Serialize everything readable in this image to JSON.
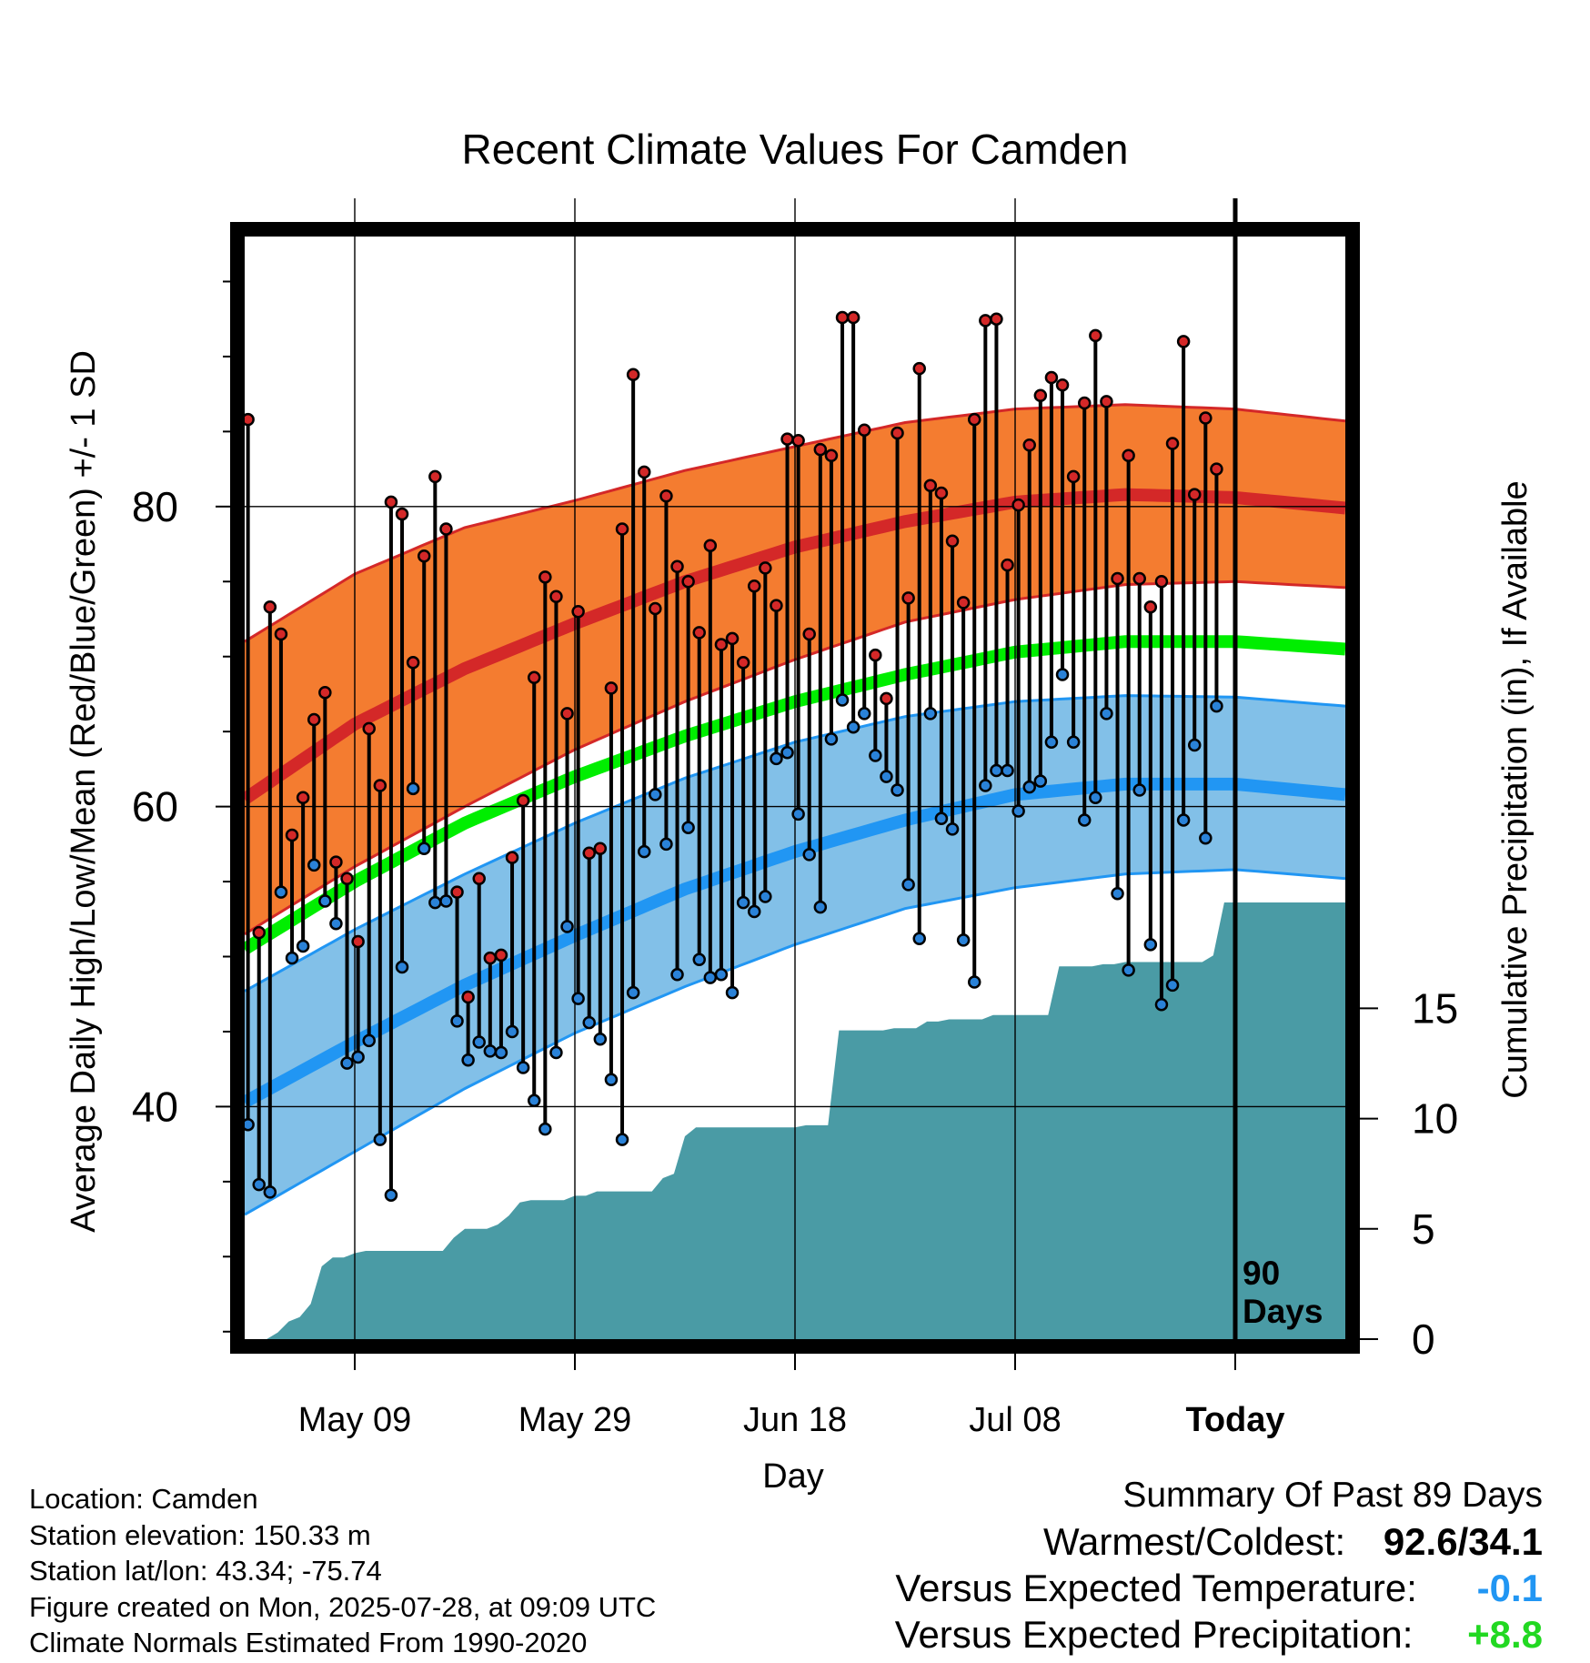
{
  "chart_data": {
    "type": "line",
    "title": "Recent Climate Values For Camden",
    "xlabel": "Day",
    "ylabel_left": "Average Daily High/Low/Mean (Red/Blue/Green) +/- 1 SD",
    "ylabel_right": "Cumulative Precipitation (in), If Available",
    "x_tick_labels": [
      "May 09",
      "May 29",
      "Jun 18",
      "Jul 08",
      "Today"
    ],
    "x_tick_days": [
      10,
      30,
      50,
      70,
      90
    ],
    "xlim_days": [
      0,
      100
    ],
    "left_yticks": [
      40,
      60,
      80
    ],
    "left_ylim": [
      24.5,
      98
    ],
    "right_yticks": [
      0,
      5,
      10,
      15
    ],
    "right_ylim": [
      0,
      50
    ],
    "today_marker_label": "90 Days",
    "grid": true,
    "colors": {
      "high_band": "#f47c30",
      "high_mean": "#d42828",
      "low_band": "#82c0e8",
      "low_mean": "#2196f3",
      "mean_line": "#00ee00",
      "precip": "#4a9ba5",
      "high_marker": "#d42828",
      "low_marker": "#2a82d8"
    },
    "normals": {
      "days": [
        0,
        10,
        20,
        30,
        40,
        50,
        60,
        70,
        80,
        90,
        100
      ],
      "high_mean": [
        60.5,
        65.5,
        69.2,
        72.2,
        75.0,
        77.3,
        79.0,
        80.3,
        80.8,
        80.6,
        79.9
      ],
      "high_upper": [
        71.0,
        75.5,
        78.6,
        80.4,
        82.4,
        84.0,
        85.6,
        86.5,
        86.8,
        86.5,
        85.7
      ],
      "high_lower": [
        51.5,
        56.0,
        60.0,
        63.8,
        67.0,
        69.8,
        72.3,
        73.8,
        74.8,
        75.0,
        74.6
      ],
      "mean": [
        50.5,
        55.0,
        58.9,
        62.0,
        64.7,
        67.0,
        68.8,
        70.3,
        71.0,
        71.0,
        70.5
      ],
      "low_mean": [
        40.3,
        44.3,
        48.1,
        51.4,
        54.5,
        57.0,
        59.1,
        60.8,
        61.5,
        61.5,
        60.8
      ],
      "low_upper": [
        47.7,
        51.8,
        55.5,
        58.9,
        61.9,
        64.3,
        66.0,
        67.0,
        67.4,
        67.3,
        66.7
      ],
      "low_lower": [
        32.8,
        37.0,
        41.2,
        44.9,
        48.0,
        50.8,
        53.2,
        54.6,
        55.5,
        55.8,
        55.2
      ]
    },
    "daily_high": [
      85.8,
      51.6,
      73.3,
      71.5,
      58.1,
      60.6,
      65.8,
      67.6,
      56.3,
      55.2,
      51.0,
      65.2,
      61.4,
      80.3,
      79.5,
      69.6,
      76.7,
      82.0,
      78.5,
      54.3,
      47.3,
      55.2,
      49.9,
      50.1,
      56.6,
      60.4,
      68.6,
      75.3,
      74.0,
      66.2,
      73.0,
      56.9,
      57.2,
      67.9,
      78.5,
      88.8,
      82.3,
      73.2,
      80.7,
      76.0,
      75.0,
      71.6,
      77.4,
      70.8,
      71.2,
      69.6,
      74.7,
      75.9,
      73.4,
      84.5,
      84.4,
      71.5,
      83.8,
      83.4,
      92.6,
      92.6,
      85.1,
      70.1,
      67.2,
      84.9,
      73.9,
      89.2,
      81.4,
      80.9,
      77.7,
      73.6,
      85.8,
      92.4,
      92.5,
      76.1,
      80.1,
      84.1,
      87.4,
      88.6,
      88.1,
      82.0,
      86.9,
      91.4,
      87.0,
      75.2,
      83.4,
      75.2,
      73.3,
      75.0,
      84.2,
      91.0,
      80.8,
      85.9,
      82.5
    ],
    "daily_low": [
      38.8,
      34.8,
      34.3,
      54.3,
      49.9,
      50.7,
      56.1,
      53.7,
      52.2,
      42.9,
      43.3,
      44.4,
      37.8,
      34.1,
      49.3,
      61.2,
      57.2,
      53.6,
      53.7,
      45.7,
      43.1,
      44.3,
      43.7,
      43.6,
      45.0,
      42.6,
      40.4,
      38.5,
      43.6,
      52.0,
      47.2,
      45.6,
      44.5,
      41.8,
      37.8,
      47.6,
      57.0,
      60.8,
      57.5,
      48.8,
      58.6,
      49.8,
      48.6,
      48.8,
      47.6,
      53.6,
      53.0,
      54.0,
      63.2,
      63.6,
      59.5,
      56.8,
      53.3,
      64.5,
      67.1,
      65.3,
      66.2,
      63.4,
      62.0,
      61.1,
      54.8,
      51.2,
      66.2,
      59.2,
      58.5,
      51.1,
      48.3,
      61.4,
      62.4,
      62.4,
      59.7,
      61.3,
      61.7,
      64.3,
      68.8,
      64.3,
      59.1,
      60.6,
      66.2,
      54.2,
      49.1,
      61.1,
      50.8,
      46.8,
      48.1,
      59.1,
      64.1,
      57.9,
      66.7
    ],
    "cumulative_precip": {
      "days": [
        0,
        1,
        2,
        3,
        4,
        5,
        6,
        7,
        8,
        9,
        10,
        11,
        12,
        13,
        14,
        15,
        16,
        17,
        18,
        19,
        20,
        21,
        22,
        23,
        24,
        25,
        26,
        27,
        28,
        29,
        30,
        31,
        32,
        33,
        34,
        35,
        36,
        37,
        38,
        39,
        40,
        41,
        42,
        43,
        44,
        45,
        46,
        47,
        48,
        49,
        50,
        51,
        52,
        53,
        54,
        55,
        56,
        57,
        58,
        59,
        60,
        61,
        62,
        63,
        64,
        65,
        66,
        67,
        68,
        69,
        70,
        71,
        72,
        73,
        74,
        75,
        76,
        77,
        78,
        79,
        80,
        81,
        82,
        83,
        84,
        85,
        86,
        87,
        88,
        89,
        90,
        100
      ],
      "values": [
        0.0,
        0.0,
        0.0,
        0.3,
        0.8,
        1.0,
        1.6,
        3.3,
        3.7,
        3.7,
        3.9,
        4.0,
        4.0,
        4.0,
        4.0,
        4.0,
        4.0,
        4.0,
        4.0,
        4.6,
        5.0,
        5.0,
        5.0,
        5.2,
        5.6,
        6.2,
        6.3,
        6.3,
        6.3,
        6.3,
        6.5,
        6.5,
        6.7,
        6.7,
        6.7,
        6.7,
        6.7,
        6.7,
        7.3,
        7.5,
        9.2,
        9.6,
        9.6,
        9.6,
        9.6,
        9.6,
        9.6,
        9.6,
        9.6,
        9.6,
        9.6,
        9.7,
        9.7,
        9.7,
        14.0,
        14.0,
        14.0,
        14.0,
        14.0,
        14.1,
        14.1,
        14.1,
        14.4,
        14.4,
        14.5,
        14.5,
        14.5,
        14.5,
        14.7,
        14.7,
        14.7,
        14.7,
        14.7,
        14.7,
        16.9,
        16.9,
        16.9,
        16.9,
        17.0,
        17.0,
        17.1,
        17.1,
        17.1,
        17.1,
        17.1,
        17.1,
        17.1,
        17.1,
        17.4,
        19.8,
        19.8,
        19.8
      ]
    }
  },
  "footer": {
    "location": "Location: Camden",
    "elevation": "Station elevation: 150.33 m",
    "latlon": "Station lat/lon: 43.34; -75.74",
    "created": "Figure created on Mon, 2025-07-28, at 09:09 UTC",
    "normals_source": "Climate Normals Estimated From 1990-2020"
  },
  "summary": {
    "heading": "Summary Of Past 89 Days",
    "warm_cold_label": "Warmest/Coldest:",
    "warm_cold_value": "92.6/34.1",
    "temp_label": "Versus Expected Temperature:",
    "temp_value": "-0.1",
    "temp_color": "#2196f3",
    "precip_label": "Versus Expected Precipitation:",
    "precip_value": "+8.8",
    "precip_color": "#22d822"
  }
}
